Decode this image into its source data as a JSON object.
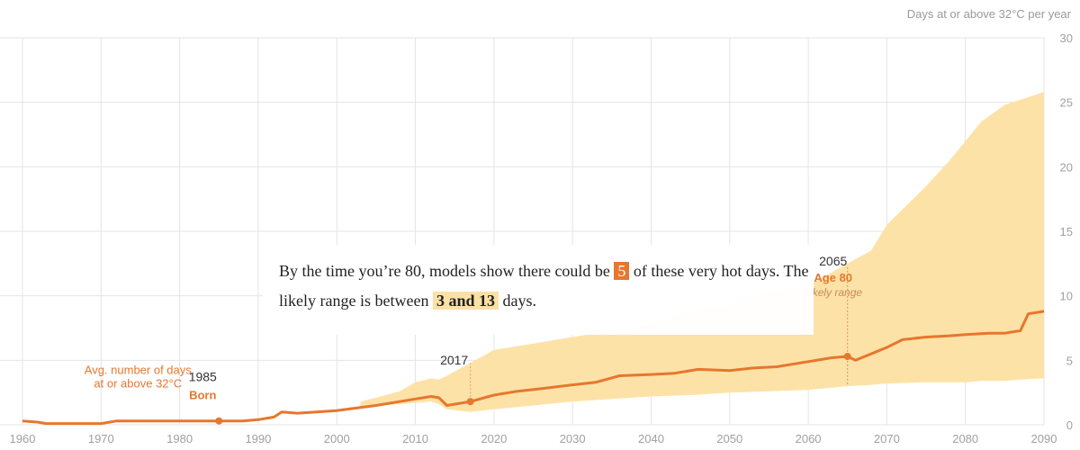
{
  "chart_data": {
    "type": "line",
    "unit_label": "Days at or above 32°C per year",
    "xlim": [
      1960,
      2090
    ],
    "ylim": [
      0,
      30
    ],
    "x_ticks": [
      1960,
      1970,
      1980,
      1990,
      2000,
      2010,
      2020,
      2030,
      2040,
      2050,
      2060,
      2070,
      2080,
      2090
    ],
    "y_ticks": [
      0,
      5,
      10,
      15,
      20,
      25,
      30
    ],
    "series": [
      {
        "name": "Avg. number of days at or above 32°C",
        "x": [
          1960,
          1962,
          1963,
          1965,
          1970,
          1972,
          1973,
          1975,
          1980,
          1985,
          1988,
          1990,
          1992,
          1993,
          1995,
          2000,
          2005,
          2008,
          2010,
          2012,
          2013,
          2014,
          2017,
          2020,
          2023,
          2026,
          2030,
          2033,
          2036,
          2040,
          2043,
          2046,
          2050,
          2053,
          2056,
          2060,
          2063,
          2065,
          2066,
          2070,
          2072,
          2075,
          2078,
          2080,
          2083,
          2085,
          2087,
          2088,
          2090
        ],
        "values": [
          0.3,
          0.2,
          0.1,
          0.1,
          0.1,
          0.3,
          0.3,
          0.3,
          0.3,
          0.3,
          0.3,
          0.4,
          0.6,
          1.0,
          0.9,
          1.1,
          1.5,
          1.8,
          2.0,
          2.2,
          2.1,
          1.5,
          1.8,
          2.3,
          2.6,
          2.8,
          3.1,
          3.3,
          3.8,
          3.9,
          4.0,
          4.3,
          4.2,
          4.4,
          4.5,
          4.9,
          5.2,
          5.3,
          5.0,
          6.0,
          6.6,
          6.8,
          6.9,
          7.0,
          7.1,
          7.1,
          7.3,
          8.6,
          8.8
        ]
      }
    ],
    "likely_range": {
      "x": [
        2003,
        2005,
        2008,
        2010,
        2012,
        2013,
        2014,
        2017,
        2020,
        2025,
        2030,
        2035,
        2040,
        2045,
        2050,
        2055,
        2060,
        2065,
        2068,
        2070,
        2075,
        2078,
        2080,
        2082,
        2085,
        2087,
        2090
      ],
      "low": [
        1.3,
        1.5,
        1.6,
        1.7,
        1.8,
        1.6,
        1.2,
        1.0,
        1.2,
        1.5,
        1.8,
        2.0,
        2.2,
        2.3,
        2.5,
        2.6,
        2.7,
        3.0,
        3.1,
        3.2,
        3.3,
        3.3,
        3.3,
        3.4,
        3.4,
        3.5,
        3.6
      ],
      "high": [
        1.8,
        2.1,
        2.6,
        3.3,
        3.6,
        3.5,
        3.8,
        4.8,
        5.8,
        6.3,
        6.8,
        7.3,
        7.8,
        8.8,
        9.3,
        10.3,
        10.8,
        12.5,
        13.5,
        15.5,
        18.5,
        20.5,
        22.0,
        23.5,
        24.8,
        25.2,
        25.8
      ]
    },
    "annotations": {
      "series_label_line1": "Avg. number of days",
      "series_label_line2": "at or above 32°C",
      "born_year": "1985",
      "born_label": "Born",
      "current_year": "2017",
      "age80_year": "2065",
      "age80_label": "Age 80",
      "likely_range_label": "Likely range"
    }
  },
  "narrative": {
    "part1": "By the time you’re 80, models show there could be",
    "value": "5",
    "part2": "of these very hot days. The likely range is between",
    "range": "3 and 13",
    "part3": "days."
  },
  "colors": {
    "line": "#e6772e",
    "band": "#fde2a8",
    "grid": "#e4e4e4"
  }
}
